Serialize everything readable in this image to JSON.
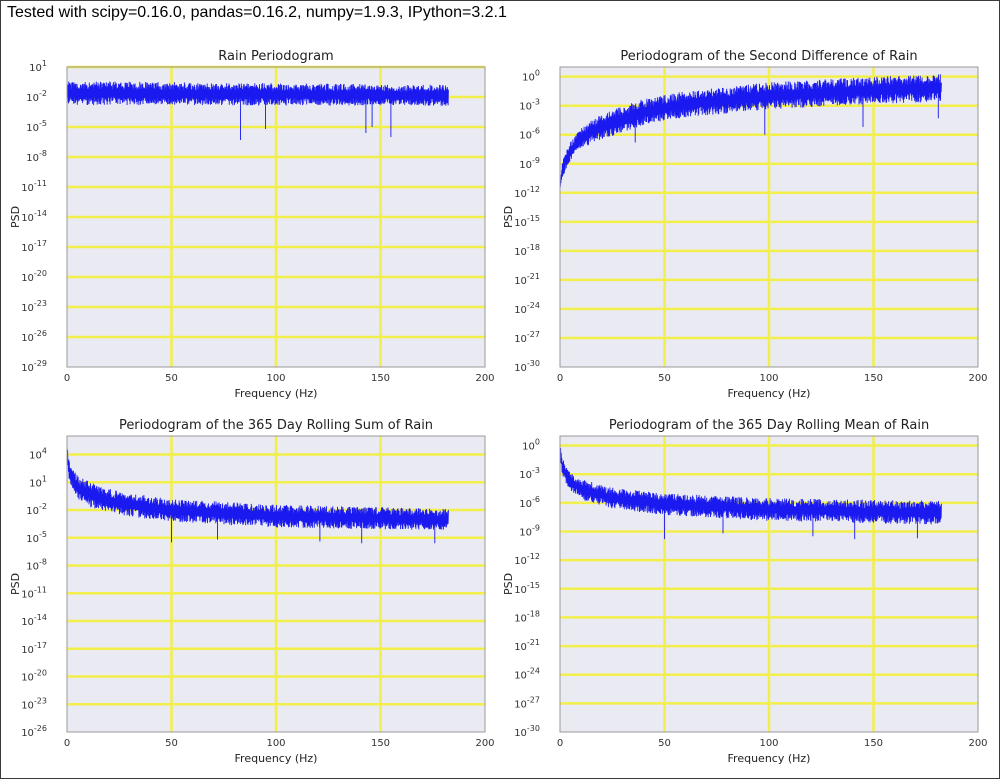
{
  "header": {
    "text": "Tested with scipy=0.16.0, pandas=0.16.2, numpy=1.9.3, IPython=3.2.1"
  },
  "style": {
    "background": "#eaeaf2",
    "grid": "#f2ee4a",
    "line": "#1919f0"
  },
  "chart_data": [
    {
      "type": "line",
      "title": "Rain Periodogram",
      "xlabel": "Frequency (Hz)",
      "ylabel": "PSD",
      "xlim": [
        0,
        200
      ],
      "xticks": [
        0,
        50,
        100,
        150,
        200
      ],
      "yscale": "log",
      "ylim_exp": [
        -29,
        1
      ],
      "ytick_exps": [
        1,
        -2,
        -5,
        -8,
        -11,
        -14,
        -17,
        -20,
        -23,
        -26,
        -29
      ],
      "ytick_labels": [
        "10^1",
        "10^-2",
        "10^-5",
        "10^-8",
        "10^-11",
        "10^-14",
        "10^-17",
        "10^-20",
        "10^-23",
        "10^-26",
        "10^-29"
      ],
      "grid": true,
      "series": [
        {
          "x_range": [
            0,
            182.5
          ],
          "band_log10": [
            [
              0,
              -0.4,
              -2.8
            ],
            [
              182.5,
              -0.8,
              -2.9
            ]
          ],
          "dips_log10": [
            [
              83,
              -6.3
            ],
            [
              95,
              -5.2
            ],
            [
              143,
              -5.6
            ],
            [
              146,
              -5.0
            ],
            [
              155,
              -6.0
            ]
          ]
        }
      ]
    },
    {
      "type": "line",
      "title": "Periodogram of the Second Difference of Rain",
      "xlabel": "Frequency (Hz)",
      "ylabel": "PSD",
      "xlim": [
        0,
        200
      ],
      "xticks": [
        0,
        50,
        100,
        150,
        200
      ],
      "yscale": "log",
      "ylim_exp": [
        -30,
        1
      ],
      "ytick_exps": [
        0,
        -3,
        -6,
        -9,
        -12,
        -15,
        -18,
        -21,
        -24,
        -27,
        -30
      ],
      "ytick_labels": [
        "10^0",
        "10^-3",
        "10^-6",
        "10^-9",
        "10^-12",
        "10^-15",
        "10^-18",
        "10^-21",
        "10^-24",
        "10^-27",
        "10^-30"
      ],
      "grid": true,
      "series": [
        {
          "x_range": [
            0,
            182.5
          ],
          "band_log10": [
            [
              0,
              -11.5,
              -11.5
            ],
            [
              1,
              -9.0,
              -10.5
            ],
            [
              3,
              -7.5,
              -9.5
            ],
            [
              6,
              -6.4,
              -8.5
            ],
            [
              10,
              -5.3,
              -7.4
            ],
            [
              20,
              -3.8,
              -6.5
            ],
            [
              40,
              -2.3,
              -5.0
            ],
            [
              60,
              -1.5,
              -4.2
            ],
            [
              100,
              -0.6,
              -3.4
            ],
            [
              140,
              -0.1,
              -2.9
            ],
            [
              182.5,
              0.3,
              -2.6
            ]
          ],
          "dips_log10": [
            [
              36,
              -6.8
            ],
            [
              98,
              -6.0
            ],
            [
              145,
              -5.2
            ],
            [
              181,
              -4.3
            ]
          ]
        }
      ]
    },
    {
      "type": "line",
      "title": "Periodogram of the 365 Day Rolling Sum of Rain",
      "xlabel": "Frequency (Hz)",
      "ylabel": "PSD",
      "xlim": [
        0,
        200
      ],
      "xticks": [
        0,
        50,
        100,
        150,
        200
      ],
      "yscale": "log",
      "ylim_exp": [
        -26,
        6
      ],
      "ytick_exps": [
        4,
        1,
        -2,
        -5,
        -8,
        -11,
        -14,
        -17,
        -20,
        -23,
        -26
      ],
      "ytick_labels": [
        "10^4",
        "10^1",
        "10^-2",
        "10^-5",
        "10^-8",
        "10^-11",
        "10^-14",
        "10^-17",
        "10^-20",
        "10^-23",
        "10^-26"
      ],
      "grid": true,
      "series": [
        {
          "x_range": [
            0,
            182.5
          ],
          "band_log10": [
            [
              0,
              5.0,
              3.0
            ],
            [
              1,
              3.3,
              1.0
            ],
            [
              3,
              2.3,
              -0.2
            ],
            [
              6,
              1.6,
              -1.0
            ],
            [
              12,
              0.9,
              -1.8
            ],
            [
              25,
              0.0,
              -2.6
            ],
            [
              50,
              -0.8,
              -3.3
            ],
            [
              100,
              -1.4,
              -3.9
            ],
            [
              182.5,
              -1.9,
              -4.2
            ]
          ],
          "dips_log10": [
            [
              50,
              -5.5
            ],
            [
              72,
              -5.2
            ],
            [
              121,
              -5.4
            ],
            [
              141,
              -5.6
            ],
            [
              176,
              -5.6
            ]
          ]
        }
      ]
    },
    {
      "type": "line",
      "title": "Periodogram of the 365 Day Rolling Mean of Rain",
      "xlabel": "Frequency (Hz)",
      "ylabel": "PSD",
      "xlim": [
        0,
        200
      ],
      "xticks": [
        0,
        50,
        100,
        150,
        200
      ],
      "yscale": "log",
      "ylim_exp": [
        -30,
        1
      ],
      "ytick_exps": [
        0,
        -3,
        -6,
        -9,
        -12,
        -15,
        -18,
        -21,
        -24,
        -27,
        -30
      ],
      "ytick_labels": [
        "10^0",
        "10^-3",
        "10^-6",
        "10^-9",
        "10^-12",
        "10^-15",
        "10^-18",
        "10^-21",
        "10^-24",
        "10^-27",
        "10^-30"
      ],
      "grid": true,
      "series": [
        {
          "x_range": [
            0,
            182.5
          ],
          "band_log10": [
            [
              0,
              0.3,
              -1.5
            ],
            [
              1,
              -1.0,
              -3.0
            ],
            [
              3,
              -2.2,
              -4.2
            ],
            [
              6,
              -3.0,
              -5.0
            ],
            [
              12,
              -3.6,
              -5.8
            ],
            [
              25,
              -4.4,
              -6.6
            ],
            [
              50,
              -5.0,
              -7.3
            ],
            [
              100,
              -5.5,
              -7.9
            ],
            [
              182.5,
              -5.8,
              -8.3
            ]
          ],
          "dips_log10": [
            [
              50,
              -9.8
            ],
            [
              78,
              -9.2
            ],
            [
              121,
              -9.5
            ],
            [
              141,
              -9.8
            ],
            [
              171,
              -9.7
            ]
          ]
        }
      ]
    }
  ]
}
